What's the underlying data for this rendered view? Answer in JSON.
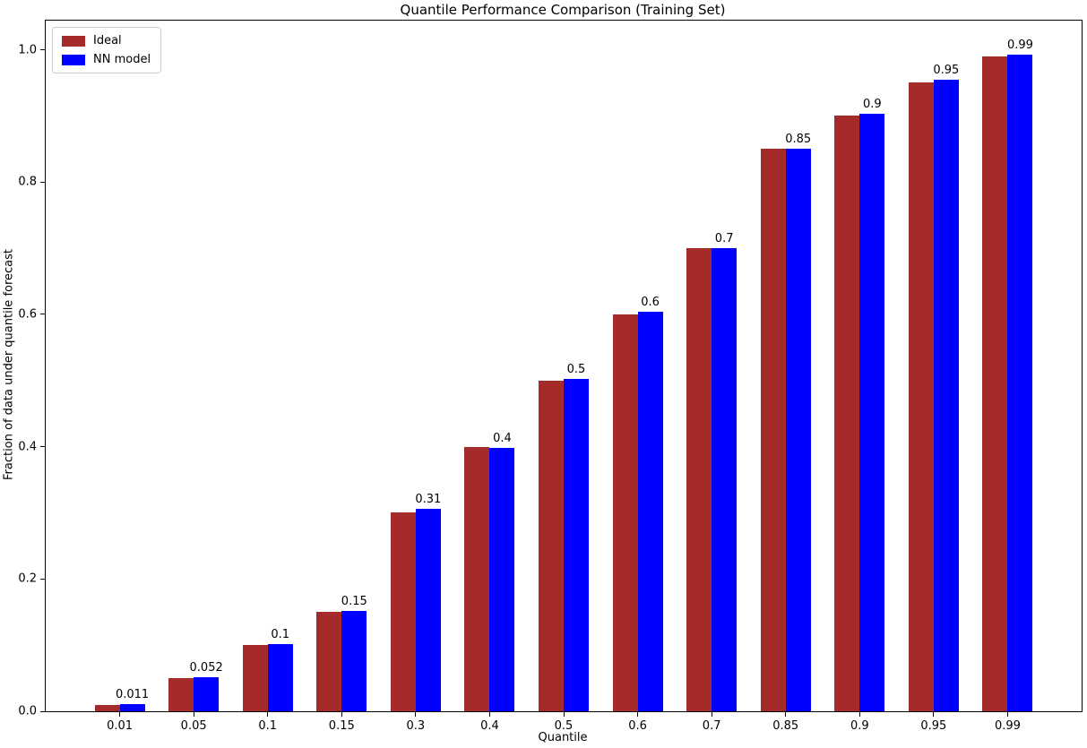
{
  "chart_data": {
    "type": "bar",
    "title": "Quantile Performance Comparison (Training Set)",
    "xlabel": "Quantile",
    "ylabel": "Fraction of data under quantile forecast",
    "categories": [
      "0.01",
      "0.05",
      "0.1",
      "0.15",
      "0.3",
      "0.4",
      "0.5",
      "0.6",
      "0.7",
      "0.85",
      "0.9",
      "0.95",
      "0.99"
    ],
    "series": [
      {
        "name": "Ideal",
        "color": "#A52A2A",
        "values": [
          0.01,
          0.05,
          0.1,
          0.15,
          0.3,
          0.4,
          0.5,
          0.6,
          0.7,
          0.85,
          0.9,
          0.95,
          0.99
        ]
      },
      {
        "name": "NN model",
        "color": "#0000FF",
        "values": [
          0.011,
          0.052,
          0.102,
          0.152,
          0.306,
          0.398,
          0.503,
          0.604,
          0.7,
          0.851,
          0.903,
          0.955,
          0.992
        ],
        "bar_labels": [
          "0.011",
          "0.052",
          "0.1",
          "0.15",
          "0.31",
          "0.4",
          "0.5",
          "0.6",
          "0.7",
          "0.85",
          "0.9",
          "0.95",
          "0.99"
        ]
      }
    ],
    "yticks": [
      "0.0",
      "0.2",
      "0.4",
      "0.6",
      "0.8",
      "1.0"
    ],
    "ylim": [
      0,
      1.044
    ],
    "grid": false,
    "legend_position": "upper left"
  }
}
